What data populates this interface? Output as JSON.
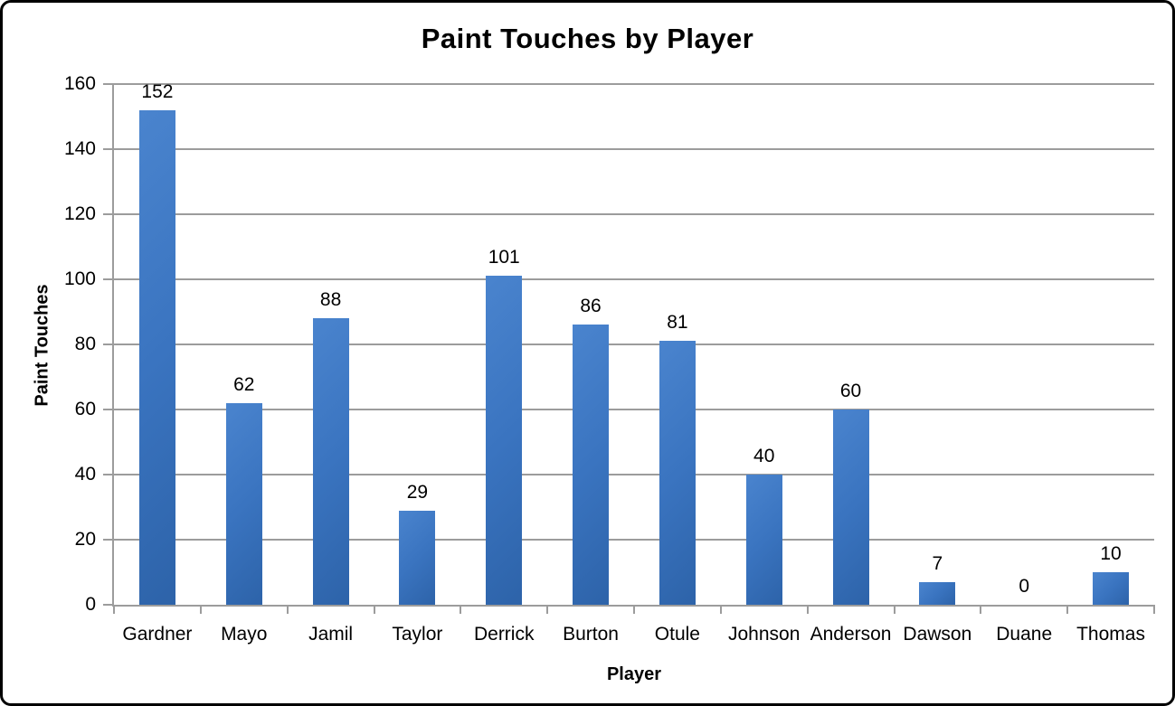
{
  "chart_data": {
    "type": "bar",
    "title": "Paint Touches by Player",
    "xlabel": "Player",
    "ylabel": "Paint Touches",
    "categories": [
      "Gardner",
      "Mayo",
      "Jamil",
      "Taylor",
      "Derrick",
      "Burton",
      "Otule",
      "Johnson",
      "Anderson",
      "Dawson",
      "Duane",
      "Thomas"
    ],
    "values": [
      152,
      62,
      88,
      29,
      101,
      86,
      81,
      40,
      60,
      7,
      0,
      10
    ],
    "ylim": [
      0,
      160
    ],
    "y_ticks": [
      0,
      20,
      40,
      60,
      80,
      100,
      120,
      140,
      160
    ],
    "grid": true,
    "legend": false,
    "data_labels": true,
    "colors": {
      "bar_gradient_start": "#4a84ce",
      "bar_gradient_mid": "#3a74c0",
      "bar_gradient_end": "#2d63a9",
      "gridline": "#9c9c9c",
      "axis": "#9c9c9c",
      "text": "#000000",
      "frame_border": "#000000",
      "background": "#ffffff"
    }
  }
}
